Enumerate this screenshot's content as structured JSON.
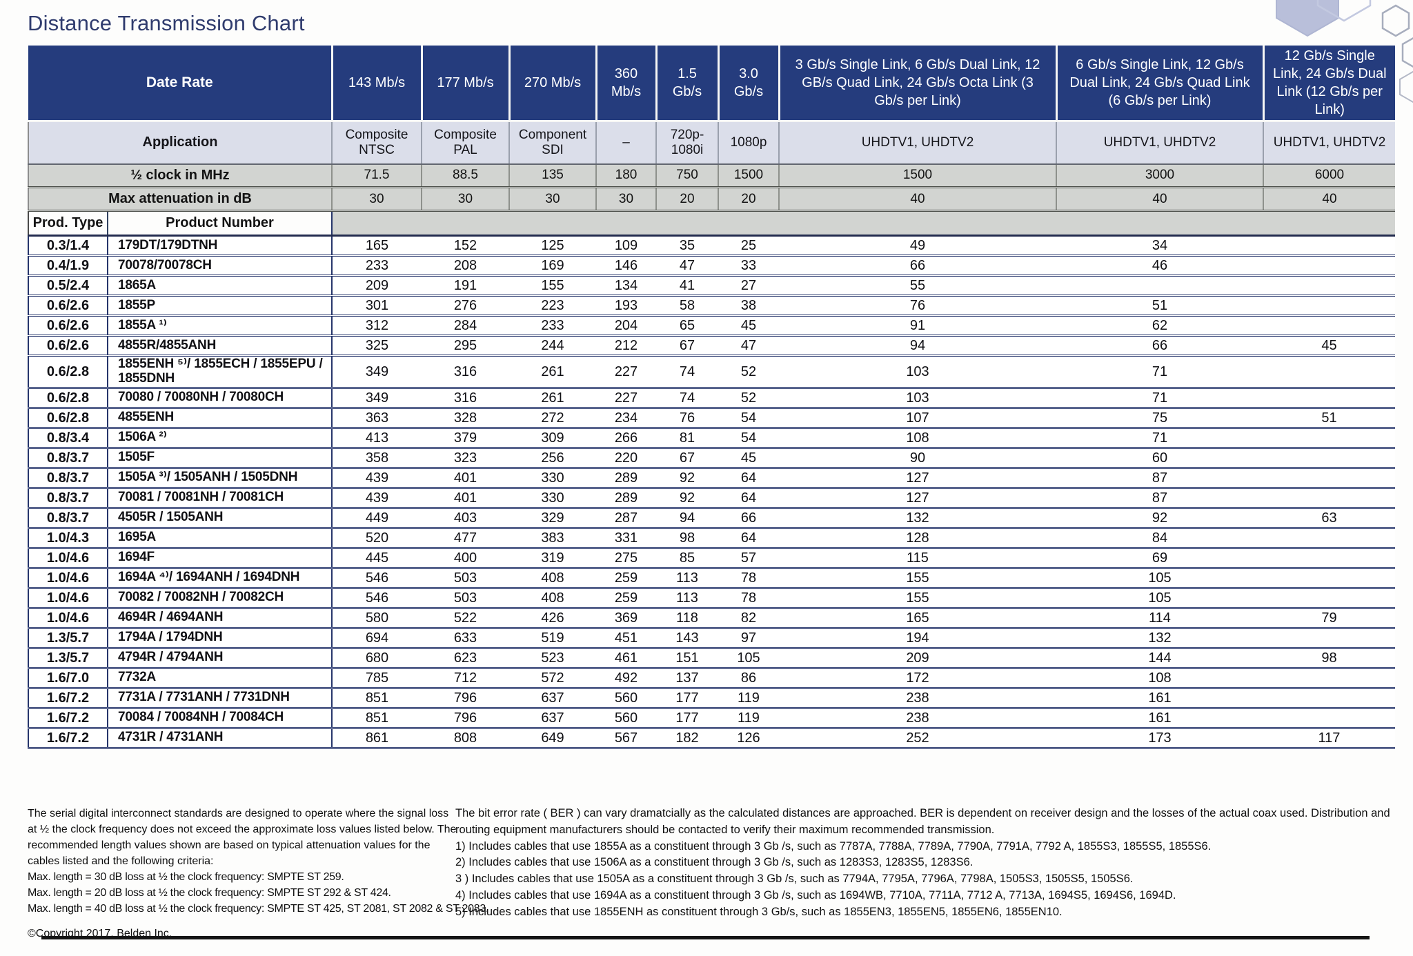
{
  "title": "Distance Transmission Chart",
  "colors": {
    "header_navy": "#253c7d",
    "application_row_bg": "#dbdeea",
    "gray_row_bg": "#d2d4d1",
    "row_border_navy": "#26356b",
    "title_text": "#303c6e",
    "hexagon_fill": "#b9bfda"
  },
  "table": {
    "date_rate_label": "Date Rate",
    "application_label": "Application",
    "half_clock_label": "½ clock in MHz",
    "max_attenuation_label": "Max attenuation in dB",
    "prod_type_label": "Prod. Type",
    "product_number_label": "Product Number",
    "columns": [
      {
        "rate": "143 Mb/s",
        "application": "Composite NTSC",
        "half_clock": "71.5",
        "max_attenuation": "30"
      },
      {
        "rate": "177 Mb/s",
        "application": "Composite PAL",
        "half_clock": "88.5",
        "max_attenuation": "30"
      },
      {
        "rate": "270 Mb/s",
        "application": "Component SDI",
        "half_clock": "135",
        "max_attenuation": "30"
      },
      {
        "rate": "360 Mb/s",
        "application": "–",
        "half_clock": "180",
        "max_attenuation": "30"
      },
      {
        "rate": "1.5 Gb/s",
        "application": "720p-1080i",
        "half_clock": "750",
        "max_attenuation": "20"
      },
      {
        "rate": "3.0 Gb/s",
        "application": "1080p",
        "half_clock": "1500",
        "max_attenuation": "20"
      },
      {
        "rate": "3 Gb/s Single Link, 6 Gb/s Dual Link, 12 GB/s Quad Link, 24 Gb/s Octa Link (3 Gb/s per Link)",
        "application": "UHDTV1, UHDTV2",
        "half_clock": "1500",
        "max_attenuation": "40"
      },
      {
        "rate": "6 Gb/s Single Link, 12 Gb/s Dual Link, 24 Gb/s Quad Link (6 Gb/s per Link)",
        "application": "UHDTV1, UHDTV2",
        "half_clock": "3000",
        "max_attenuation": "40"
      },
      {
        "rate": "12 Gb/s Single Link, 24 Gb/s Dual Link (12 Gb/s per Link)",
        "application": "UHDTV1, UHDTV2",
        "half_clock": "6000",
        "max_attenuation": "40"
      }
    ],
    "rows": [
      {
        "prod_type": "0.3/1.4",
        "product": "179DT/179DTNH",
        "values": [
          "165",
          "152",
          "125",
          "109",
          "35",
          "25",
          "49",
          "34",
          ""
        ]
      },
      {
        "prod_type": "0.4/1.9",
        "product": "70078/70078CH",
        "values": [
          "233",
          "208",
          "169",
          "146",
          "47",
          "33",
          "66",
          "46",
          ""
        ]
      },
      {
        "prod_type": "0.5/2.4",
        "product": "1865A",
        "values": [
          "209",
          "191",
          "155",
          "134",
          "41",
          "27",
          "55",
          "",
          ""
        ]
      },
      {
        "prod_type": "0.6/2.6",
        "product": "1855P",
        "values": [
          "301",
          "276",
          "223",
          "193",
          "58",
          "38",
          "76",
          "51",
          ""
        ]
      },
      {
        "prod_type": "0.6/2.6",
        "product": "1855A ¹⁾",
        "values": [
          "312",
          "284",
          "233",
          "204",
          "65",
          "45",
          "91",
          "62",
          ""
        ]
      },
      {
        "prod_type": "0.6/2.6",
        "product": "4855R/4855ANH",
        "values": [
          "325",
          "295",
          "244",
          "212",
          "67",
          "47",
          "94",
          "66",
          "45"
        ]
      },
      {
        "prod_type": "0.6/2.8",
        "product": "1855ENH ⁵⁾/ 1855ECH / 1855EPU / 1855DNH",
        "values": [
          "349",
          "316",
          "261",
          "227",
          "74",
          "52",
          "103",
          "71",
          ""
        ]
      },
      {
        "prod_type": "0.6/2.8",
        "product": "70080 / 70080NH / 70080CH",
        "values": [
          "349",
          "316",
          "261",
          "227",
          "74",
          "52",
          "103",
          "71",
          ""
        ]
      },
      {
        "prod_type": "0.6/2.8",
        "product": "4855ENH",
        "values": [
          "363",
          "328",
          "272",
          "234",
          "76",
          "54",
          "107",
          "75",
          "51"
        ]
      },
      {
        "prod_type": "0.8/3.4",
        "product": "1506A ²⁾",
        "values": [
          "413",
          "379",
          "309",
          "266",
          "81",
          "54",
          "108",
          "71",
          ""
        ]
      },
      {
        "prod_type": "0.8/3.7",
        "product": "1505F",
        "values": [
          "358",
          "323",
          "256",
          "220",
          "67",
          "45",
          "90",
          "60",
          ""
        ]
      },
      {
        "prod_type": "0.8/3.7",
        "product": "1505A ³⁾/ 1505ANH / 1505DNH",
        "values": [
          "439",
          "401",
          "330",
          "289",
          "92",
          "64",
          "127",
          "87",
          ""
        ]
      },
      {
        "prod_type": "0.8/3.7",
        "product": "70081 / 70081NH / 70081CH",
        "values": [
          "439",
          "401",
          "330",
          "289",
          "92",
          "64",
          "127",
          "87",
          ""
        ]
      },
      {
        "prod_type": "0.8/3.7",
        "product": "4505R / 1505ANH",
        "values": [
          "449",
          "403",
          "329",
          "287",
          "94",
          "66",
          "132",
          "92",
          "63"
        ]
      },
      {
        "prod_type": "1.0/4.3",
        "product": "1695A",
        "values": [
          "520",
          "477",
          "383",
          "331",
          "98",
          "64",
          "128",
          "84",
          ""
        ]
      },
      {
        "prod_type": "1.0/4.6",
        "product": "1694F",
        "values": [
          "445",
          "400",
          "319",
          "275",
          "85",
          "57",
          "115",
          "69",
          ""
        ]
      },
      {
        "prod_type": "1.0/4.6",
        "product": "1694A ⁴⁾/ 1694ANH / 1694DNH",
        "values": [
          "546",
          "503",
          "408",
          "259",
          "113",
          "78",
          "155",
          "105",
          ""
        ]
      },
      {
        "prod_type": "1.0/4.6",
        "product": "70082 / 70082NH / 70082CH",
        "values": [
          "546",
          "503",
          "408",
          "259",
          "113",
          "78",
          "155",
          "105",
          ""
        ]
      },
      {
        "prod_type": "1.0/4.6",
        "product": "4694R / 4694ANH",
        "values": [
          "580",
          "522",
          "426",
          "369",
          "118",
          "82",
          "165",
          "114",
          "79"
        ]
      },
      {
        "prod_type": "1.3/5.7",
        "product": "1794A / 1794DNH",
        "values": [
          "694",
          "633",
          "519",
          "451",
          "143",
          "97",
          "194",
          "132",
          ""
        ]
      },
      {
        "prod_type": "1.3/5.7",
        "product": "4794R / 4794ANH",
        "values": [
          "680",
          "623",
          "523",
          "461",
          "151",
          "105",
          "209",
          "144",
          "98"
        ]
      },
      {
        "prod_type": "1.6/7.0",
        "product": "7732A",
        "values": [
          "785",
          "712",
          "572",
          "492",
          "137",
          "86",
          "172",
          "108",
          ""
        ]
      },
      {
        "prod_type": "1.6/7.2",
        "product": "7731A / 7731ANH / 7731DNH",
        "values": [
          "851",
          "796",
          "637",
          "560",
          "177",
          "119",
          "238",
          "161",
          ""
        ]
      },
      {
        "prod_type": "1.6/7.2",
        "product": "70084 / 70084NH / 70084CH",
        "values": [
          "851",
          "796",
          "637",
          "560",
          "177",
          "119",
          "238",
          "161",
          ""
        ]
      },
      {
        "prod_type": "1.6/7.2",
        "product": "4731R / 4731ANH",
        "values": [
          "861",
          "808",
          "649",
          "567",
          "182",
          "126",
          "252",
          "173",
          "117"
        ]
      }
    ]
  },
  "footer": {
    "left": {
      "paragraph": "The serial digital interconnect standards are designed to operate where the signal loss at ½ the clock frequency does not exceed the approximate loss values listed below. The recommended length values shown are based on typical attenuation values for the cables listed and the following criteria:",
      "lines": [
        "Max. length = 30 dB loss at ½ the clock frequency: SMPTE ST 259.",
        "Max. length = 20 dB loss at ½ the clock frequency: SMPTE ST 292 & ST 424.",
        "Max. length = 40 dB loss at ½ the clock frequency: SMPTE ST 425, ST 2081, ST 2082 & ST 2083."
      ],
      "copyright": "©Copyright 2017, Belden Inc."
    },
    "right": {
      "paragraph": "The bit error rate ( BER ) can vary dramatcially as the calculated distances are approached. BER is dependent on receiver design and the losses of the actual coax used. Distribution and routing equipment manufacturers should be contacted to verify their maximum recommended transmission.",
      "notes": [
        "1) Includes cables that use 1855A as a constituent through 3 Gb /s, such as 7787A, 7788A, 7789A, 7790A, 7791A, 7792 A, 1855S3, 1855S5, 1855S6.",
        "2) Includes cables that use 1506A as a constituent through 3 Gb /s, such as 1283S3, 1283S5, 1283S6.",
        "3 ) Includes cables that use 1505A as a constituent through 3 Gb /s, such as 7794A, 7795A, 7796A, 7798A, 1505S3, 1505S5, 1505S6.",
        "4) Includes cables that use 1694A as a constituent through 3 Gb /s, such as 1694WB, 7710A, 7711A, 7712 A, 7713A, 1694S5, 1694S6, 1694D.",
        "5) Includes cables that use 1855ENH as constituent through 3 Gb/s, such as 1855EN3, 1855EN5, 1855EN6, 1855EN10."
      ]
    }
  }
}
